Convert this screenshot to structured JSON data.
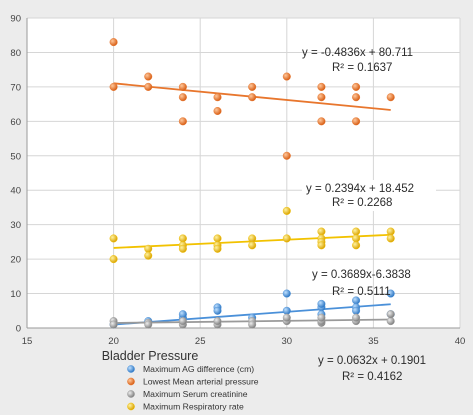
{
  "chart_data": {
    "type": "scatter",
    "xlabel": "Bladder Pressure",
    "ylabel": "",
    "xlim": [
      15,
      40
    ],
    "ylim": [
      0,
      90
    ],
    "x_ticks": [
      15,
      20,
      25,
      30,
      35,
      40
    ],
    "y_ticks": [
      0,
      10,
      20,
      30,
      40,
      50,
      60,
      70,
      80,
      90
    ],
    "grid": "on",
    "legend_position": "bottom-left",
    "series": [
      {
        "name": "Maximum  AG difference (cm)",
        "color": "#4a90d9",
        "points": [
          [
            20,
            1
          ],
          [
            22,
            2
          ],
          [
            24,
            3
          ],
          [
            24,
            4
          ],
          [
            26,
            6
          ],
          [
            26,
            5
          ],
          [
            28,
            3
          ],
          [
            30,
            10
          ],
          [
            30,
            5
          ],
          [
            32,
            6
          ],
          [
            32,
            7
          ],
          [
            32,
            4
          ],
          [
            34,
            8
          ],
          [
            34,
            6
          ],
          [
            34,
            5
          ],
          [
            36,
            10
          ],
          [
            36,
            4
          ]
        ],
        "trendline": {
          "slope": 0.3689,
          "intercept": -6.3838,
          "x_range": [
            20,
            36
          ],
          "color": "#4a90d9"
        },
        "equation": "y = 0.3689x-6.3838",
        "r2": "R² = 0.5111"
      },
      {
        "name": "Lowest Mean arterial pressure",
        "color": "#e8762d",
        "points": [
          [
            20,
            83
          ],
          [
            20,
            70
          ],
          [
            22,
            73
          ],
          [
            22,
            70
          ],
          [
            24,
            70
          ],
          [
            24,
            67
          ],
          [
            24,
            60
          ],
          [
            26,
            67
          ],
          [
            26,
            63
          ],
          [
            28,
            70
          ],
          [
            28,
            67
          ],
          [
            30,
            73
          ],
          [
            30,
            50
          ],
          [
            32,
            70
          ],
          [
            32,
            67
          ],
          [
            32,
            60
          ],
          [
            34,
            70
          ],
          [
            34,
            67
          ],
          [
            34,
            60
          ],
          [
            36,
            67
          ]
        ],
        "trendline": {
          "slope": -0.4836,
          "intercept": 80.711,
          "x_range": [
            20,
            36
          ],
          "color": "#e8762d"
        },
        "equation": "y = -0.4836x + 80.711",
        "r2": "R² = 0.1637"
      },
      {
        "name": "Maximum Serum creatinine",
        "color": "#9a9a9a",
        "points": [
          [
            20,
            2
          ],
          [
            20,
            1
          ],
          [
            22,
            1.5
          ],
          [
            22,
            1
          ],
          [
            24,
            1
          ],
          [
            24,
            2
          ],
          [
            26,
            1
          ],
          [
            26,
            2
          ],
          [
            28,
            2
          ],
          [
            28,
            1
          ],
          [
            30,
            2
          ],
          [
            30,
            3
          ],
          [
            32,
            1.5
          ],
          [
            32,
            2
          ],
          [
            32,
            3
          ],
          [
            34,
            2
          ],
          [
            34,
            3
          ],
          [
            36,
            2
          ],
          [
            36,
            4
          ]
        ],
        "trendline": {
          "slope": 0.0632,
          "intercept": 0.1901,
          "x_range": [
            20,
            36
          ],
          "color": "#9a9a9a"
        },
        "equation": "y = 0.0632x + 0.1901",
        "r2": "R² = 0.4162"
      },
      {
        "name": "Maximum Respiratory rate",
        "color": "#f2c200",
        "points": [
          [
            20,
            26
          ],
          [
            20,
            20
          ],
          [
            22,
            23
          ],
          [
            22,
            21
          ],
          [
            24,
            26
          ],
          [
            24,
            24
          ],
          [
            24,
            23
          ],
          [
            26,
            26
          ],
          [
            26,
            24
          ],
          [
            26,
            23
          ],
          [
            28,
            26
          ],
          [
            28,
            24
          ],
          [
            30,
            34
          ],
          [
            30,
            26
          ],
          [
            32,
            28
          ],
          [
            32,
            26
          ],
          [
            32,
            25
          ],
          [
            32,
            24
          ],
          [
            34,
            28
          ],
          [
            34,
            26
          ],
          [
            34,
            24
          ],
          [
            36,
            28
          ],
          [
            36,
            26
          ]
        ],
        "trendline": {
          "slope": 0.2394,
          "intercept": 18.452,
          "x_range": [
            20,
            36
          ],
          "color": "#f2c200"
        },
        "equation": "y = 0.2394x + 18.452",
        "r2": "R² = 0.2268"
      }
    ]
  }
}
